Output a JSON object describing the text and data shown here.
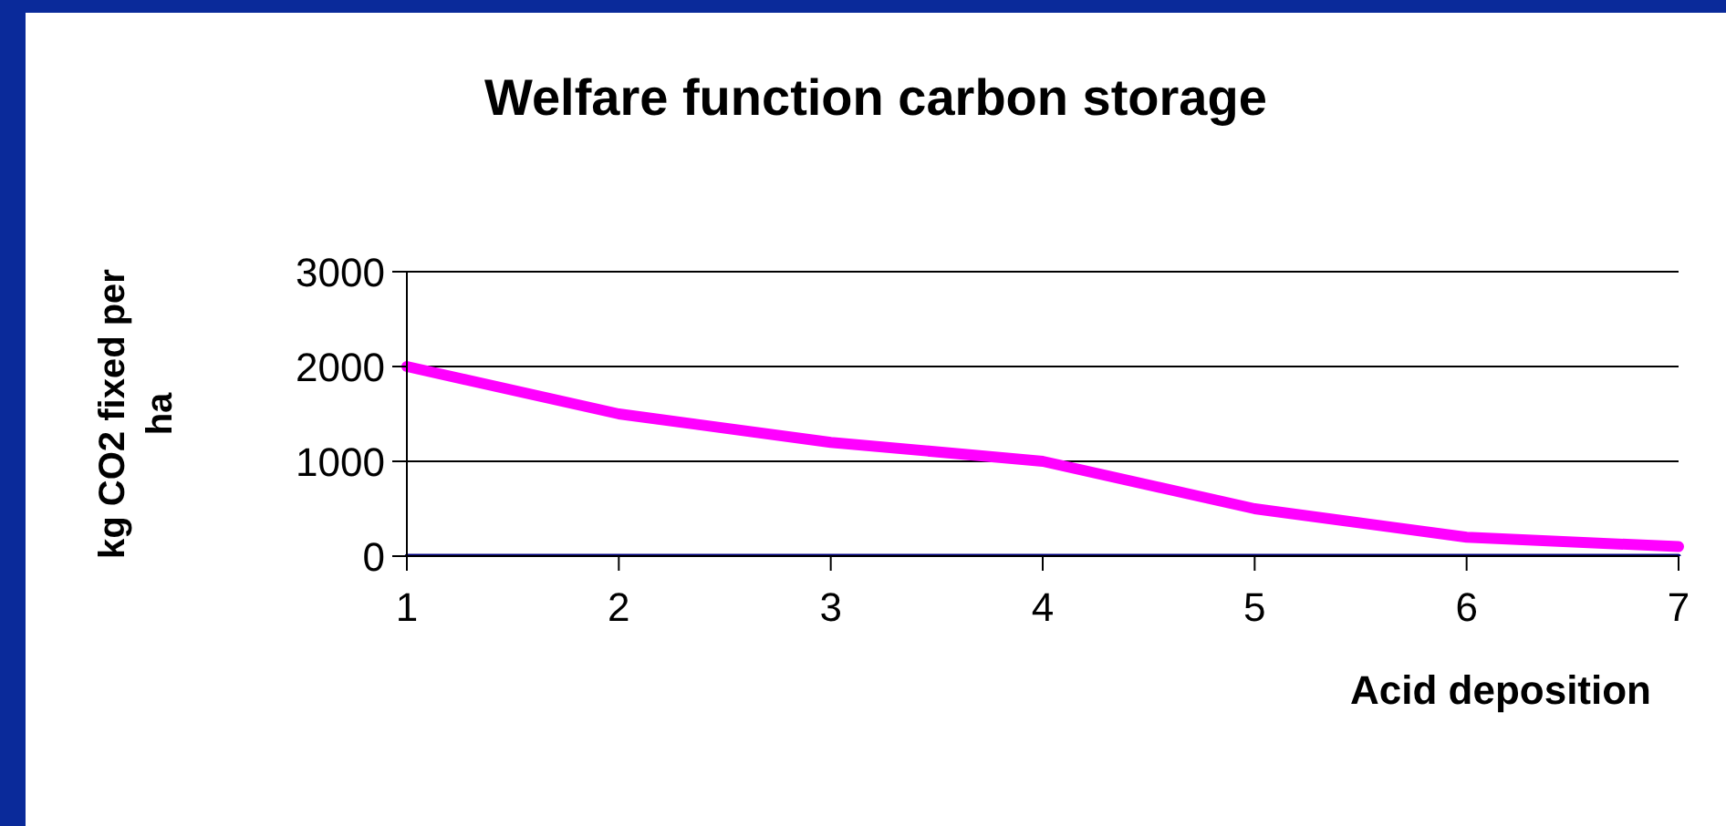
{
  "chart_data": {
    "type": "line",
    "title": "Welfare function carbon storage",
    "xlabel": "Acid deposition",
    "ylabel": "kg CO2 fixed per ha",
    "categories": [
      "1",
      "2",
      "3",
      "4",
      "5",
      "6",
      "7"
    ],
    "series": [
      {
        "color": "#ff00ff",
        "values": [
          2000,
          1500,
          1200,
          1000,
          500,
          200,
          100
        ]
      },
      {
        "color": "#000080",
        "values": [
          0,
          0,
          0,
          0,
          0,
          0,
          0
        ]
      }
    ],
    "ylim": [
      0,
      3000
    ],
    "yticks": [
      0,
      1000,
      2000,
      3000
    ],
    "grid": "y",
    "legend": false,
    "marker": "none",
    "line_style": "solid"
  }
}
